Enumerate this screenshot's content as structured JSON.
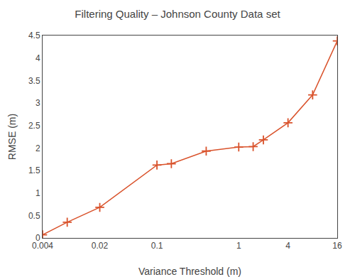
{
  "chart_data": {
    "type": "line",
    "title": "Filtering Quality – Johnson County Data set",
    "x_label": "Variance Threshold (m)",
    "y_label": "RMSE (m)",
    "x": [
      0.004,
      0.008,
      0.02,
      0.1,
      0.15,
      0.4,
      1.0,
      1.5,
      2.0,
      4.0,
      8.0,
      16.0
    ],
    "values": [
      0.07,
      0.35,
      0.68,
      1.62,
      1.65,
      1.93,
      2.02,
      2.03,
      2.18,
      2.56,
      3.18,
      4.38
    ],
    "color": "#d9522b",
    "marker": "plus",
    "line_style": "solid",
    "log": "x",
    "xlim": [
      0.004,
      16
    ],
    "xticks": [
      0.004,
      0.02,
      0.1,
      1,
      4,
      16
    ],
    "ylim": [
      0,
      4.5
    ],
    "yticks": [
      0,
      0.5,
      1,
      1.5,
      2,
      2.5,
      3,
      3.5,
      4,
      4.5
    ],
    "grid": false
  }
}
